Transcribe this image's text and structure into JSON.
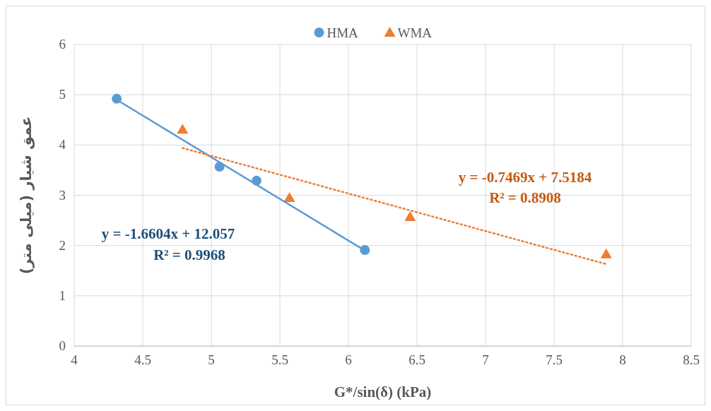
{
  "chart_data": {
    "type": "scatter",
    "xlabel": "G*/sin(δ) (kPa)",
    "ylabel": "عمق شیار (میلی متر)",
    "xlim": [
      4,
      8.5
    ],
    "xticks": [
      4,
      4.5,
      5,
      5.5,
      6,
      6.5,
      7,
      7.5,
      8,
      8.5
    ],
    "ylim": [
      0,
      6
    ],
    "yticks": [
      0,
      1,
      2,
      3,
      4,
      5,
      6
    ],
    "grid": true,
    "legend": "top",
    "series": [
      {
        "name": "HMA",
        "marker": "circle",
        "color": "#5b9bd5",
        "x": [
          4.31,
          5.06,
          5.33,
          6.12
        ],
        "values": [
          4.92,
          3.57,
          3.29,
          1.91
        ]
      },
      {
        "name": "WMA",
        "marker": "triangle",
        "color": "#ed7d31",
        "x": [
          4.79,
          5.57,
          6.45,
          7.88
        ],
        "values": [
          4.31,
          2.95,
          2.57,
          1.83
        ]
      },
      {
        "type": "line",
        "marker": "none",
        "line_style": "solid",
        "color": "#5b9bd5",
        "x": [
          4.31,
          6.12
        ],
        "values": [
          4.9,
          1.9
        ]
      },
      {
        "type": "line",
        "marker": "none",
        "line_style": "dotted",
        "color": "#ed7d31",
        "x": [
          4.79,
          7.88
        ],
        "values": [
          3.94,
          1.63
        ]
      }
    ],
    "annotations": [
      "y = -1.6604x + 12.057",
      "R² = 0.9968",
      "y = -0.7469x + 7.5184",
      "R² = 0.8908"
    ]
  }
}
